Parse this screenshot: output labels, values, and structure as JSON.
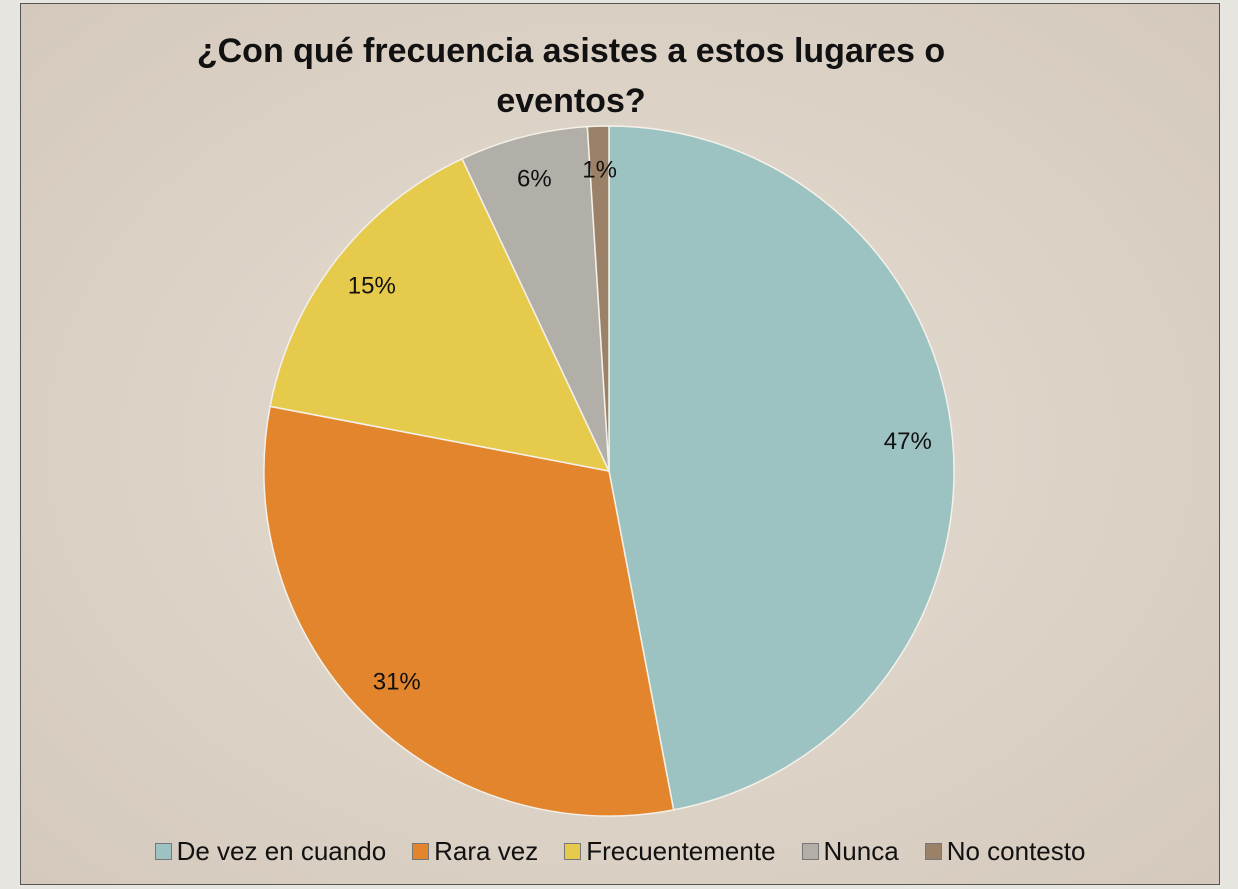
{
  "chart_data": {
    "type": "pie",
    "title": "¿Con qué frecuencia asistes a estos lugares o eventos?",
    "categories": [
      "De vez en cuando",
      "Rara vez",
      "Frecuentemente",
      "Nunca",
      "No contesto"
    ],
    "values": [
      47,
      31,
      15,
      6,
      1
    ],
    "value_labels": [
      "47%",
      "31%",
      "15%",
      "6%",
      "1%"
    ],
    "colors": [
      "#9cc2c2",
      "#e3852c",
      "#e6ca4c",
      "#b1afa8",
      "#9b8167"
    ],
    "legend": "bottom"
  }
}
